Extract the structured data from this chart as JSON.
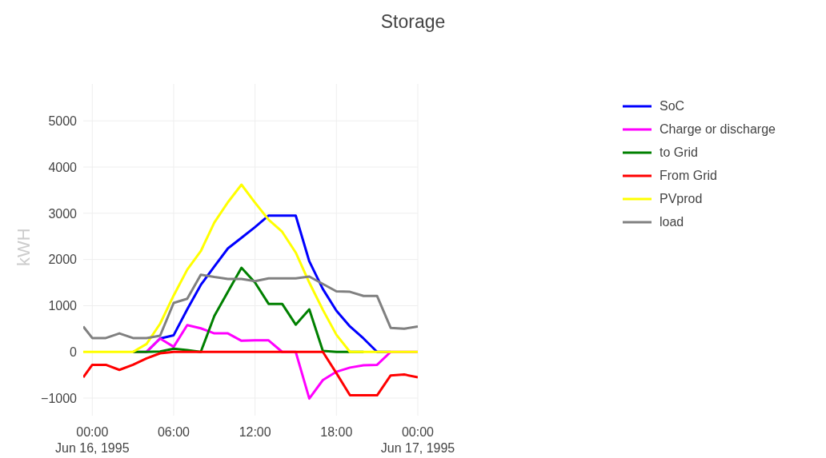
{
  "chart_data": {
    "type": "line",
    "title": "Storage",
    "ylabel": "kWH",
    "x": [
      "1995-06-15T23:20",
      "1995-06-16T00:00",
      "1995-06-16T01:00",
      "1995-06-16T02:00",
      "1995-06-16T03:00",
      "1995-06-16T04:00",
      "1995-06-16T05:00",
      "1995-06-16T06:00",
      "1995-06-16T07:00",
      "1995-06-16T08:00",
      "1995-06-16T09:00",
      "1995-06-16T10:00",
      "1995-06-16T11:00",
      "1995-06-16T12:00",
      "1995-06-16T13:00",
      "1995-06-16T14:00",
      "1995-06-16T15:00",
      "1995-06-16T16:00",
      "1995-06-16T17:00",
      "1995-06-16T18:00",
      "1995-06-16T19:00",
      "1995-06-16T20:00",
      "1995-06-16T21:00",
      "1995-06-16T22:00",
      "1995-06-16T23:00",
      "1995-06-17T00:00"
    ],
    "series": [
      {
        "name": "SoC",
        "color": "#0000ff",
        "values": [
          null,
          null,
          null,
          null,
          null,
          0,
          290,
          360,
          920,
          1450,
          1850,
          2240,
          2470,
          2700,
          2950,
          2950,
          2950,
          1960,
          1360,
          890,
          550,
          290,
          0,
          0,
          null,
          null
        ]
      },
      {
        "name": "Charge or discharge",
        "color": "#ff00ff",
        "values": [
          null,
          null,
          null,
          null,
          0,
          0,
          290,
          110,
          580,
          510,
          400,
          400,
          240,
          250,
          250,
          0,
          0,
          -1010,
          -610,
          -430,
          -340,
          -290,
          -280,
          0,
          0,
          0
        ]
      },
      {
        "name": "to Grid",
        "color": "#008000",
        "values": [
          null,
          null,
          null,
          null,
          0,
          0,
          10,
          70,
          40,
          0,
          780,
          1300,
          1820,
          1500,
          1040,
          1040,
          590,
          920,
          20,
          0,
          0,
          0,
          null,
          null,
          null,
          null
        ]
      },
      {
        "name": "From Grid",
        "color": "#ff0000",
        "values": [
          -550,
          -280,
          -280,
          -390,
          -280,
          -140,
          -30,
          0,
          0,
          0,
          0,
          0,
          0,
          0,
          0,
          0,
          0,
          0,
          0,
          -460,
          -940,
          -940,
          -940,
          -510,
          -490,
          -550
        ]
      },
      {
        "name": "PVprod",
        "color": "#ffff00",
        "values": [
          0,
          0,
          0,
          0,
          0,
          170,
          610,
          1220,
          1780,
          2180,
          2800,
          3240,
          3620,
          3230,
          2860,
          2600,
          2150,
          1500,
          910,
          370,
          0,
          0,
          0,
          0,
          0,
          0
        ]
      },
      {
        "name": "load",
        "color": "#808080",
        "values": [
          550,
          300,
          300,
          400,
          300,
          300,
          350,
          1060,
          1150,
          1670,
          1620,
          1580,
          1580,
          1530,
          1590,
          1590,
          1590,
          1630,
          1470,
          1310,
          1300,
          1210,
          1210,
          520,
          500,
          550
        ]
      }
    ],
    "xlim": [
      "1995-06-15T23:20",
      "1995-06-17T00:00"
    ],
    "xticks": [
      {
        "value": "1995-06-16T00:00",
        "label": "00:00\nJun 16, 1995"
      },
      {
        "value": "1995-06-16T06:00",
        "label": "06:00"
      },
      {
        "value": "1995-06-16T12:00",
        "label": "12:00"
      },
      {
        "value": "1995-06-16T18:00",
        "label": "18:00"
      },
      {
        "value": "1995-06-17T00:00",
        "label": "00:00\nJun 17, 1995"
      }
    ],
    "ylim": [
      -1380,
      5800
    ],
    "yticks": [
      {
        "value": -1000,
        "label": "−1000"
      },
      0,
      1000,
      2000,
      3000,
      4000,
      5000
    ],
    "grid": true,
    "legend": "top right"
  }
}
